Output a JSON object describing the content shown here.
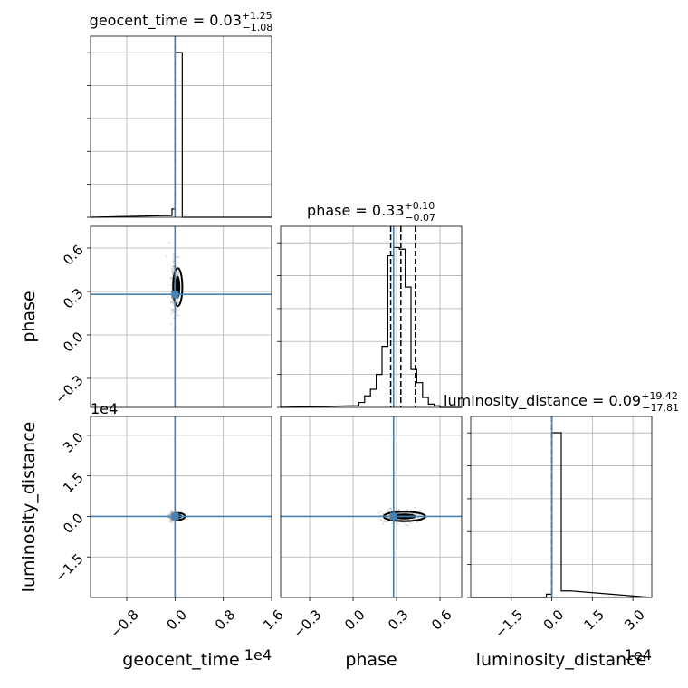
{
  "chart_data": {
    "type": "corner",
    "parameters": [
      {
        "name": "geocent_time",
        "title_text": "geocent_time = 0.03",
        "title_plus": "+1.25",
        "title_minus": "−1.08",
        "range": [
          -1.4,
          1.6
        ],
        "ticks": [
          -0.8,
          0.0,
          0.8,
          1.6
        ],
        "tick_labels": [
          "−0.8",
          "0.0",
          "0.8",
          "1.6"
        ],
        "offset_text": "1e4",
        "truth": 0.0,
        "median": 0.0,
        "quantiles": [],
        "hist_edges": [
          -0.15,
          -0.05,
          0.0,
          0.12,
          0.25
        ],
        "hist_counts": [
          0.01,
          0.05,
          1.0,
          0.0
        ]
      },
      {
        "name": "phase",
        "title_text": "phase = 0.33",
        "title_plus": "+0.10",
        "title_minus": "−0.07",
        "range": [
          -0.5,
          0.75
        ],
        "ticks": [
          -0.3,
          0.0,
          0.3,
          0.6
        ],
        "tick_labels": [
          "−0.3",
          "0.0",
          "0.3",
          "0.6"
        ],
        "offset_text": "",
        "truth": 0.28,
        "median": 0.33,
        "quantiles": [
          0.26,
          0.33,
          0.43
        ],
        "hist_edges": [
          0.0,
          0.04,
          0.08,
          0.12,
          0.16,
          0.2,
          0.24,
          0.28,
          0.32,
          0.36,
          0.4,
          0.44,
          0.48,
          0.52,
          0.56,
          0.6,
          0.64
        ],
        "hist_counts": [
          0.01,
          0.03,
          0.07,
          0.11,
          0.2,
          0.37,
          0.92,
          0.97,
          0.96,
          0.73,
          0.23,
          0.15,
          0.06,
          0.02,
          0.01,
          0.0
        ]
      },
      {
        "name": "luminosity_distance",
        "title_text": "luminosity_distance = 0.09",
        "title_plus": "+19.42",
        "title_minus": "−17.81",
        "range": [
          -3.0,
          3.7
        ],
        "ticks": [
          -1.5,
          0.0,
          1.5,
          3.0
        ],
        "tick_labels": [
          "−1.5",
          "0.0",
          "1.5",
          "3.0"
        ],
        "offset_text": "1e4",
        "truth": 0.0,
        "median": 0.0,
        "quantiles": [],
        "hist_edges": [
          -0.3,
          -0.2,
          0.0,
          0.35,
          0.7
        ],
        "hist_counts": [
          0.0,
          0.02,
          1.0,
          0.04
        ]
      }
    ],
    "truth_color": "#4682b4",
    "grid": true
  }
}
